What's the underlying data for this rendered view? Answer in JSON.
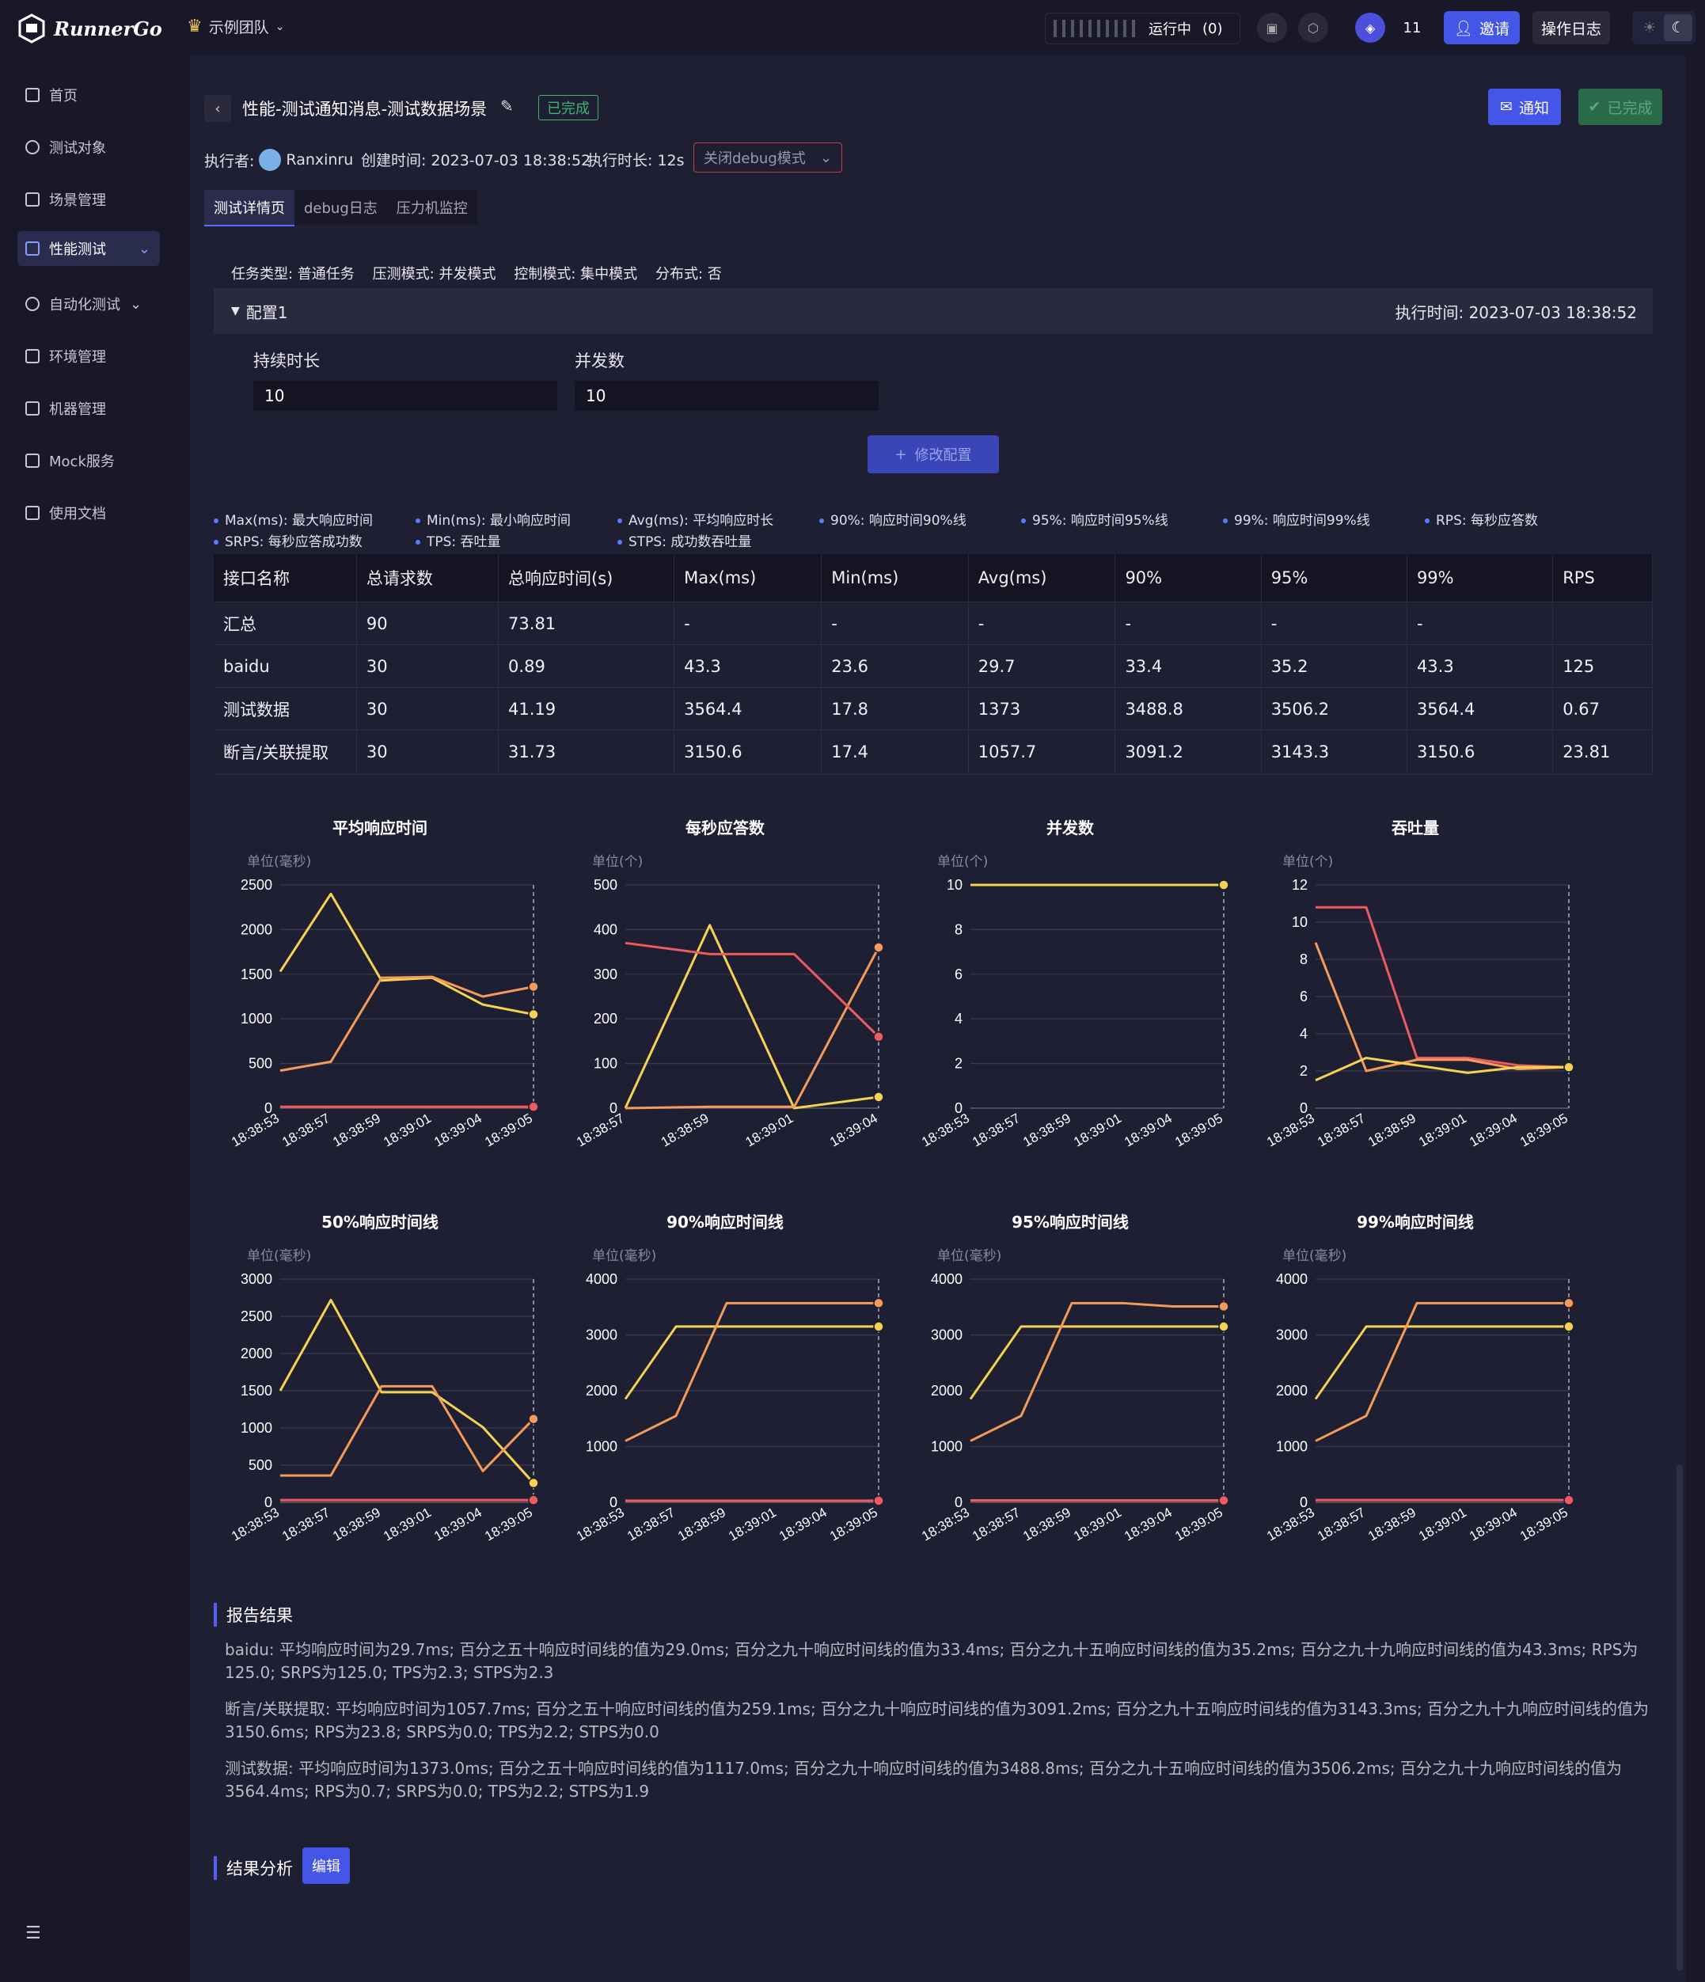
{
  "app": {
    "name": "RunnerGo",
    "team": "示例团队"
  },
  "topbar": {
    "running_label": "运行中",
    "running_count": "(0)",
    "member_count": "11",
    "invite": "邀请",
    "log": "操作日志"
  },
  "sidebar": {
    "items": [
      {
        "label": "首页",
        "icon": "home-icon"
      },
      {
        "label": "测试对象",
        "icon": "link-icon"
      },
      {
        "label": "场景管理",
        "icon": "scene-icon"
      },
      {
        "label": "性能测试",
        "icon": "chart-icon",
        "active": true
      },
      {
        "label": "自动化测试",
        "icon": "auto-icon"
      },
      {
        "label": "环境管理",
        "icon": "env-icon"
      },
      {
        "label": "机器管理",
        "icon": "machine-icon"
      },
      {
        "label": "Mock服务",
        "icon": "mock-icon"
      },
      {
        "label": "使用文档",
        "icon": "doc-icon"
      }
    ]
  },
  "report": {
    "title": "性能-测试通知消息-测试数据场景",
    "status": "已完成",
    "notify": "通知",
    "done_btn": "已完成",
    "executor_label": "执行者:",
    "executor": "Ranxinru",
    "created": "创建时间: 2023-07-03 18:38:52",
    "duration": "执行时长: 12s",
    "debug": "关闭debug模式",
    "tabs": [
      "测试详情页",
      "debug日志",
      "压力机监控"
    ],
    "task_info": "任务类型: 普通任务    压测模式: 并发模式    控制模式: 集中模式    分布式: 否",
    "config_name": "配置1",
    "config_time": "执行时间: 2023-07-03 18:38:52",
    "dur_label": "持续时长",
    "dur_value": "10",
    "conc_label": "并发数",
    "conc_value": "10",
    "modify": "修改配置"
  },
  "legend": [
    "Max(ms): 最大响应时间",
    "Min(ms): 最小响应时间",
    "Avg(ms): 平均响应时长",
    "90%: 响应时间90%线",
    "95%: 响应时间95%线",
    "99%: 响应时间99%线",
    "RPS: 每秒应答数",
    "SRPS: 每秒应答成功数",
    "TPS: 吞吐量",
    "STPS: 成功数吞吐量"
  ],
  "table": {
    "headers": [
      "接口名称",
      "总请求数",
      "总响应时间(s)",
      "Max(ms)",
      "Min(ms)",
      "Avg(ms)",
      "90%",
      "95%",
      "99%",
      "RPS"
    ],
    "rows": [
      [
        "汇总",
        "90",
        "73.81",
        "-",
        "-",
        "-",
        "-",
        "-",
        "-",
        ""
      ],
      [
        "baidu",
        "30",
        "0.89",
        "43.3",
        "23.6",
        "29.7",
        "33.4",
        "35.2",
        "43.3",
        "125"
      ],
      [
        "测试数据",
        "30",
        "41.19",
        "3564.4",
        "17.8",
        "1373",
        "3488.8",
        "3506.2",
        "3564.4",
        "0.67"
      ],
      [
        "断言/关联提取",
        "30",
        "31.73",
        "3150.6",
        "17.4",
        "1057.7",
        "3091.2",
        "3143.3",
        "3150.6",
        "23.81"
      ]
    ]
  },
  "colors": {
    "yellow": "#f5d251",
    "orange": "#f49b5a",
    "red": "#ee5b5f"
  },
  "chart_data": [
    {
      "type": "line",
      "title": "平均响应时间",
      "ylabel": "单位(毫秒)",
      "ylim": [
        0,
        2500
      ],
      "yticks": [
        0,
        500,
        1000,
        1500,
        2000,
        2500
      ],
      "x": [
        "18:38:53",
        "18:38:57",
        "18:38:59",
        "18:39:01",
        "18:39:04",
        "18:39:05"
      ],
      "series": [
        {
          "color": "#f5d251",
          "values": [
            1530,
            2400,
            1430,
            1460,
            1160,
            1050
          ]
        },
        {
          "color": "#f49b5a",
          "values": [
            420,
            520,
            1460,
            1470,
            1250,
            1360
          ]
        },
        {
          "color": "#ee5b5f",
          "values": [
            15,
            15,
            15,
            15,
            15,
            15
          ]
        }
      ]
    },
    {
      "type": "line",
      "title": "每秒应答数",
      "ylabel": "单位(个)",
      "ylim": [
        0,
        500
      ],
      "yticks": [
        0,
        100,
        200,
        300,
        400,
        500
      ],
      "x": [
        "18:38:57",
        "18:38:59",
        "18:39:01",
        "18:39:04"
      ],
      "series": [
        {
          "color": "#f5d251",
          "values": [
            0,
            410,
            0,
            25
          ]
        },
        {
          "color": "#f49b5a",
          "values": [
            0,
            3,
            3,
            360
          ]
        },
        {
          "color": "#ee5b5f",
          "values": [
            370,
            345,
            345,
            160
          ]
        }
      ]
    },
    {
      "type": "line",
      "title": "并发数",
      "ylabel": "单位(个)",
      "ylim": [
        0,
        10
      ],
      "yticks": [
        0,
        2,
        4,
        6,
        8,
        10
      ],
      "x": [
        "18:38:53",
        "18:38:57",
        "18:38:59",
        "18:39:01",
        "18:39:04",
        "18:39:05"
      ],
      "series": [
        {
          "color": "#f5d251",
          "values": [
            10,
            10,
            10,
            10,
            10,
            10
          ]
        }
      ]
    },
    {
      "type": "line",
      "title": "吞吐量",
      "ylabel": "单位(个)",
      "ylim": [
        0,
        12
      ],
      "yticks": [
        0,
        2,
        4,
        6,
        8,
        10,
        12
      ],
      "x": [
        "18:38:53",
        "18:38:57",
        "18:38:59",
        "18:39:01",
        "18:39:04",
        "18:39:05"
      ],
      "series": [
        {
          "color": "#ee5b5f",
          "values": [
            10.8,
            10.8,
            2.7,
            2.7,
            2.3,
            2.2
          ]
        },
        {
          "color": "#f49b5a",
          "values": [
            8.9,
            2.0,
            2.6,
            2.6,
            2.1,
            2.2
          ]
        },
        {
          "color": "#f5d251",
          "values": [
            1.5,
            2.7,
            2.3,
            1.9,
            2.2,
            2.2
          ]
        }
      ]
    },
    {
      "type": "line",
      "title": "50%响应时间线",
      "ylabel": "单位(毫秒)",
      "ylim": [
        0,
        3000
      ],
      "yticks": [
        0,
        500,
        1000,
        1500,
        2000,
        2500,
        3000
      ],
      "x": [
        "18:38:53",
        "18:38:57",
        "18:38:59",
        "18:39:01",
        "18:39:04",
        "18:39:05"
      ],
      "series": [
        {
          "color": "#f5d251",
          "values": [
            1500,
            2720,
            1480,
            1480,
            1010,
            260
          ]
        },
        {
          "color": "#f49b5a",
          "values": [
            360,
            360,
            1560,
            1560,
            420,
            1120
          ]
        },
        {
          "color": "#ee5b5f",
          "values": [
            30,
            30,
            30,
            30,
            30,
            30
          ]
        }
      ]
    },
    {
      "type": "line",
      "title": "90%响应时间线",
      "ylabel": "单位(毫秒)",
      "ylim": [
        0,
        4000
      ],
      "yticks": [
        0,
        1000,
        2000,
        3000,
        4000
      ],
      "x": [
        "18:38:53",
        "18:38:57",
        "18:38:59",
        "18:39:01",
        "18:39:04",
        "18:39:05"
      ],
      "series": [
        {
          "color": "#f5d251",
          "values": [
            1850,
            3150,
            3150,
            3150,
            3150,
            3150
          ]
        },
        {
          "color": "#f49b5a",
          "values": [
            1100,
            1550,
            3570,
            3570,
            3570,
            3570
          ]
        },
        {
          "color": "#ee5b5f",
          "values": [
            30,
            30,
            30,
            30,
            30,
            30
          ]
        }
      ]
    },
    {
      "type": "line",
      "title": "95%响应时间线",
      "ylabel": "单位(毫秒)",
      "ylim": [
        0,
        4000
      ],
      "yticks": [
        0,
        1000,
        2000,
        3000,
        4000
      ],
      "x": [
        "18:38:53",
        "18:38:57",
        "18:38:59",
        "18:39:01",
        "18:39:04",
        "18:39:05"
      ],
      "series": [
        {
          "color": "#f5d251",
          "values": [
            1850,
            3150,
            3150,
            3150,
            3150,
            3150
          ]
        },
        {
          "color": "#f49b5a",
          "values": [
            1100,
            1550,
            3570,
            3570,
            3510,
            3510
          ]
        },
        {
          "color": "#ee5b5f",
          "values": [
            35,
            35,
            35,
            35,
            35,
            35
          ]
        }
      ]
    },
    {
      "type": "line",
      "title": "99%响应时间线",
      "ylabel": "单位(毫秒)",
      "ylim": [
        0,
        4000
      ],
      "yticks": [
        0,
        1000,
        2000,
        3000,
        4000
      ],
      "x": [
        "18:38:53",
        "18:38:57",
        "18:38:59",
        "18:39:01",
        "18:39:04",
        "18:39:05"
      ],
      "series": [
        {
          "color": "#f5d251",
          "values": [
            1850,
            3150,
            3150,
            3150,
            3150,
            3150
          ]
        },
        {
          "color": "#f49b5a",
          "values": [
            1100,
            1550,
            3570,
            3570,
            3570,
            3570
          ]
        },
        {
          "color": "#ee5b5f",
          "values": [
            40,
            40,
            40,
            40,
            40,
            40
          ]
        }
      ]
    }
  ],
  "results": {
    "heading": "报告结果",
    "lines": [
      "baidu: 平均响应时间为29.7ms;   百分之五十响应时间线的值为29.0ms; 百分之九十响应时间线的值为33.4ms; 百分之九十五响应时间线的值为35.2ms; 百分之九十九响应时间线的值为43.3ms; RPS为125.0; SRPS为125.0; TPS为2.3; STPS为2.3",
      "断言/关联提取: 平均响应时间为1057.7ms;   百分之五十响应时间线的值为259.1ms; 百分之九十响应时间线的值为3091.2ms; 百分之九十五响应时间线的值为3143.3ms; 百分之九十九响应时间线的值为3150.6ms; RPS为23.8; SRPS为0.0; TPS为2.2; STPS为0.0",
      "测试数据: 平均响应时间为1373.0ms;   百分之五十响应时间线的值为1117.0ms; 百分之九十响应时间线的值为3488.8ms; 百分之九十五响应时间线的值为3506.2ms; 百分之九十九响应时间线的值为3564.4ms; RPS为0.7; SRPS为0.0; TPS为2.2; STPS为1.9"
    ],
    "analysis_heading": "结果分析",
    "edit": "编辑"
  }
}
